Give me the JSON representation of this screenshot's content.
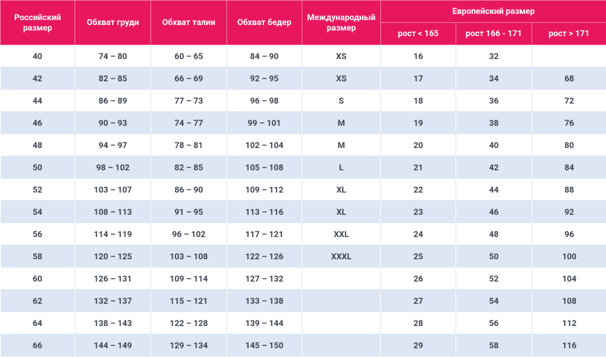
{
  "table": {
    "header_top": [
      "Российский размер",
      "Обхват груди",
      "Обхват талии",
      "Обхват бедер",
      "Международный размер",
      "Европейский размер"
    ],
    "header_sub": [
      "рост < 165",
      "рост 166 - 171",
      "рост > 171"
    ],
    "rows": [
      [
        40,
        "74 – 80",
        "60 – 65",
        "84 – 90",
        "XS",
        16,
        32,
        null
      ],
      [
        42,
        "82 – 85",
        "66 – 69",
        "92 – 95",
        "XS",
        17,
        34,
        68
      ],
      [
        44,
        "86 – 89",
        "77 – 73",
        "96 – 98",
        "S",
        18,
        36,
        72
      ],
      [
        46,
        "90 – 93",
        "74 – 77",
        "99 – 101",
        "M",
        19,
        38,
        76
      ],
      [
        48,
        "94 – 97",
        "78 – 81",
        "102 – 104",
        "M",
        20,
        40,
        80
      ],
      [
        50,
        "98 – 102",
        "82 – 85",
        "105 – 108",
        "L",
        21,
        42,
        84
      ],
      [
        52,
        "103 – 107",
        "86 – 90",
        "109 – 112",
        "XL",
        22,
        44,
        88
      ],
      [
        54,
        "108 – 113",
        "91 – 95",
        "113 – 116",
        "XL",
        23,
        46,
        92
      ],
      [
        56,
        "114 – 119",
        "96 – 102",
        "117 – 121",
        "XXL",
        24,
        48,
        96
      ],
      [
        58,
        "120 – 125",
        "103 – 108",
        "122 – 126",
        "XXXL",
        25,
        50,
        100
      ],
      [
        60,
        "126 – 131",
        "109 – 114",
        "127 – 132",
        null,
        26,
        52,
        104
      ],
      [
        62,
        "132 – 137",
        "115 – 121",
        "133 – 138",
        null,
        27,
        54,
        108
      ],
      [
        64,
        "138 – 143",
        "122 – 128",
        "139 – 144",
        null,
        28,
        56,
        112
      ],
      [
        66,
        "144 – 149",
        "129 – 134",
        "145 – 150",
        null,
        29,
        58,
        116
      ]
    ]
  }
}
